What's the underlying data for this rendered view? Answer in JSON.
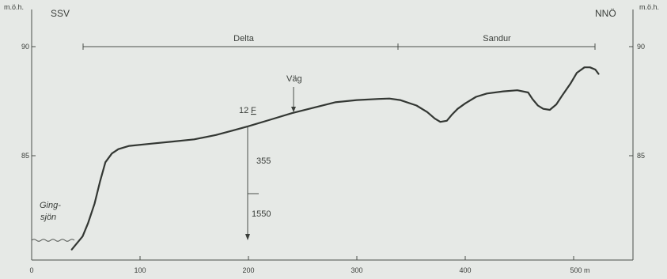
{
  "figure": {
    "left_unit": "m.ö.h.",
    "right_unit": "m.ö.h.",
    "direction_left": "SSV",
    "direction_right": "NNÖ",
    "y_ticks": [
      "90",
      "85"
    ],
    "x_ticks": [
      "0",
      "100",
      "200",
      "300",
      "400",
      "500 m"
    ],
    "zone_delta": "Delta",
    "zone_sandur": "Sandur",
    "road_label": "Väg",
    "borehole_id": "12",
    "borehole_suffix": "F",
    "borehole_depth_1": "355",
    "borehole_depth_2": "1550",
    "lake_line1": "Ging-",
    "lake_line2": "sjön"
  },
  "chart_data": {
    "type": "line",
    "xlabel": "",
    "ylabel": "m.ö.h.",
    "xlim": [
      0,
      555
    ],
    "ylim": [
      80.5,
      91.5
    ],
    "x_ticks": [
      0,
      100,
      200,
      300,
      400,
      500
    ],
    "y_ticks": [
      85,
      90
    ],
    "grid": false,
    "series": [
      {
        "x": [
          37,
          47,
          52,
          58,
          63,
          68,
          74,
          80,
          90,
          110,
          130,
          150,
          170,
          185,
          200,
          220,
          240,
          260,
          280,
          300,
          320,
          330,
          340,
          355,
          365,
          372,
          377,
          383,
          388,
          393,
          400,
          410,
          420,
          435,
          448,
          458,
          462,
          467,
          472,
          478,
          484,
          490,
          497,
          503,
          510,
          515,
          520,
          523
        ],
        "y": [
          80.7,
          81.3,
          81.9,
          82.8,
          83.8,
          84.7,
          85.1,
          85.3,
          85.45,
          85.55,
          85.65,
          85.75,
          85.95,
          86.15,
          86.35,
          86.65,
          86.95,
          87.2,
          87.45,
          87.55,
          87.6,
          87.62,
          87.55,
          87.3,
          87.0,
          86.7,
          86.55,
          86.6,
          86.9,
          87.15,
          87.4,
          87.7,
          87.85,
          87.95,
          88.0,
          87.9,
          87.6,
          87.3,
          87.15,
          87.1,
          87.35,
          87.8,
          88.3,
          88.8,
          89.05,
          89.05,
          88.95,
          88.75
        ]
      }
    ],
    "zones": [
      {
        "label": "Delta",
        "x": [
          50,
          340
        ]
      },
      {
        "label": "Sandur",
        "x": [
          340,
          520
        ]
      }
    ],
    "lake_level": 81.3,
    "road_x": 245,
    "borehole": {
      "x": 200,
      "top": 86.35,
      "marker": 83.3,
      "bottom": 80.8
    }
  }
}
